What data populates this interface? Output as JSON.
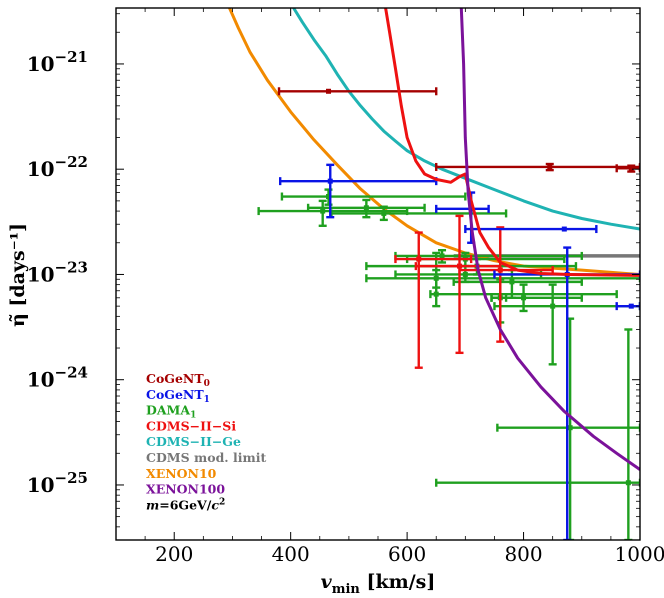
{
  "chart_data": {
    "type": "scatter",
    "xlabel": "v_min  [km/s]",
    "ylabel": "η̃ [days⁻¹]",
    "x_axis": {
      "min": 100,
      "max": 1000,
      "scale": "linear",
      "ticks": [
        200,
        400,
        600,
        800,
        1000
      ]
    },
    "y_axis": {
      "min": 3e-26,
      "max": 3.4e-21,
      "scale": "log",
      "ticks": [
        {
          "value": 1e-21,
          "exponent": "−21"
        },
        {
          "value": 1e-22,
          "exponent": "−22"
        },
        {
          "value": 1e-23,
          "exponent": "−23"
        },
        {
          "value": 1e-24,
          "exponent": "−24"
        },
        {
          "value": 1e-25,
          "exponent": "−25"
        }
      ]
    },
    "colors": {
      "CoGeNT0": "#a50000",
      "CoGeNT1": "#0a14e6",
      "DAMA1": "#1fa01f",
      "CDMS-II-Si": "#ee1111",
      "CDMS-II-Ge": "#1fb3b3",
      "CDMS-mod": "#777777",
      "XENON10": "#f28a00",
      "XENON100": "#7b129a",
      "mass": "#000000"
    },
    "legend": [
      {
        "key": "CoGeNT0",
        "label": "CoGeNT",
        "sub": "0"
      },
      {
        "key": "CoGeNT1",
        "label": "CoGeNT",
        "sub": "1"
      },
      {
        "key": "DAMA1",
        "label": "DAMA",
        "sub": "1"
      },
      {
        "key": "CDMS-II-Si",
        "label": "CDMS−II−Si",
        "sub": ""
      },
      {
        "key": "CDMS-II-Ge",
        "label": "CDMS−II−Ge",
        "sub": ""
      },
      {
        "key": "CDMS-mod",
        "label": "CDMS mod. limit",
        "sub": ""
      },
      {
        "key": "XENON10",
        "label": "XENON10",
        "sub": ""
      },
      {
        "key": "XENON100",
        "label": "XENON100",
        "sub": ""
      },
      {
        "key": "mass",
        "label": "m=6GeV/c",
        "sub": "",
        "sup": "2"
      }
    ],
    "series": [
      {
        "name": "XENON10",
        "type": "line",
        "color_key": "XENON10",
        "points": [
          [
            295,
            3.4e-21
          ],
          [
            310,
            2.2e-21
          ],
          [
            330,
            1.3e-21
          ],
          [
            360,
            7e-22
          ],
          [
            400,
            3.5e-22
          ],
          [
            440,
            1.9e-22
          ],
          [
            480,
            1.1e-22
          ],
          [
            520,
            6.5e-23
          ],
          [
            560,
            4.2e-23
          ],
          [
            600,
            2.9e-23
          ],
          [
            650,
            2e-23
          ],
          [
            700,
            1.6e-23
          ],
          [
            750,
            1.35e-23
          ],
          [
            800,
            1.2e-23
          ],
          [
            900,
            1.1e-23
          ],
          [
            1000,
            1e-23
          ]
        ]
      },
      {
        "name": "CDMS-II-Ge",
        "type": "line",
        "color_key": "CDMS-II-Ge",
        "points": [
          [
            405,
            3.4e-21
          ],
          [
            420,
            2.5e-21
          ],
          [
            440,
            1.7e-21
          ],
          [
            460,
            1.2e-21
          ],
          [
            480,
            8e-22
          ],
          [
            500,
            5.5e-22
          ],
          [
            520,
            4e-22
          ],
          [
            540,
            3e-22
          ],
          [
            560,
            2.3e-22
          ],
          [
            580,
            1.85e-22
          ],
          [
            600,
            1.5e-22
          ],
          [
            630,
            1.2e-22
          ],
          [
            660,
            1e-22
          ],
          [
            700,
            8.2e-23
          ],
          [
            750,
            6.4e-23
          ],
          [
            800,
            5e-23
          ],
          [
            850,
            4e-23
          ],
          [
            900,
            3.4e-23
          ],
          [
            950,
            3e-23
          ],
          [
            1000,
            2.7e-23
          ]
        ]
      },
      {
        "name": "CDMS-II-Si",
        "type": "line",
        "color_key": "CDMS-II-Si",
        "points": [
          [
            563,
            3.4e-21
          ],
          [
            570,
            2e-21
          ],
          [
            580,
            9e-22
          ],
          [
            590,
            4e-22
          ],
          [
            600,
            2e-22
          ],
          [
            615,
            1.2e-22
          ],
          [
            630,
            9e-23
          ],
          [
            650,
            8e-23
          ],
          [
            675,
            7.5e-23
          ],
          [
            690,
            8.5e-23
          ],
          [
            700,
            9e-23
          ],
          [
            710,
            5e-23
          ],
          [
            725,
            2.5e-23
          ],
          [
            740,
            1.8e-23
          ],
          [
            760,
            1.3e-23
          ],
          [
            790,
            1.1e-23
          ],
          [
            830,
            1.02e-23
          ],
          [
            880,
            1e-23
          ],
          [
            1000,
            9.8e-24
          ]
        ]
      },
      {
        "name": "XENON100",
        "type": "line",
        "color_key": "XENON100",
        "points": [
          [
            693,
            3.4e-21
          ],
          [
            697,
            1e-21
          ],
          [
            700,
            2e-22
          ],
          [
            705,
            6e-23
          ],
          [
            712,
            2.5e-23
          ],
          [
            722,
            1.1e-23
          ],
          [
            735,
            6e-24
          ],
          [
            760,
            3e-24
          ],
          [
            790,
            1.6e-24
          ],
          [
            830,
            8.5e-25
          ],
          [
            870,
            5e-25
          ],
          [
            920,
            2.9e-25
          ],
          [
            960,
            2e-25
          ],
          [
            1000,
            1.4e-25
          ]
        ]
      },
      {
        "name": "CDMS mod. limit",
        "type": "line",
        "color_key": "CDMS-mod",
        "points": [
          [
            680,
            1.5e-23
          ],
          [
            1000,
            1.5e-23
          ]
        ]
      },
      {
        "name": "CoGeNT0",
        "type": "errorbars",
        "color_key": "CoGeNT0",
        "points": [
          {
            "x": 465,
            "xerr": [
              380,
              650
            ],
            "y": 5.5e-22
          },
          {
            "x": 845,
            "xerr": [
              650,
              1000
            ],
            "y": 1.05e-22,
            "yerr": [
              9.8e-23,
              1.12e-22
            ]
          },
          {
            "x": 985,
            "xerr": [
              960,
              1000
            ],
            "y": 1.02e-22,
            "yerr": [
              9.5e-23,
              1.08e-22
            ]
          }
        ]
      },
      {
        "name": "CoGeNT1",
        "type": "errorbars",
        "color_key": "CoGeNT1",
        "points": [
          {
            "x": 468,
            "xerr": [
              382,
              650
            ],
            "y": 7.7e-23,
            "yerr": [
              3.5e-23,
              1.1e-22
            ]
          },
          {
            "x": 710,
            "xerr": [
              650,
              740
            ],
            "y": 4.2e-23,
            "yerr": [
              2e-23,
              6e-23
            ]
          },
          {
            "x": 870,
            "xerr": [
              700,
              925
            ],
            "y": 2.7e-23
          },
          {
            "x": 875,
            "xerr": [
              750,
              1000
            ],
            "y": 1e-23,
            "yerr": [
              3e-26,
              1.8e-23
            ]
          },
          {
            "x": 985,
            "xerr": [
              960,
              1000
            ],
            "y": 5e-24
          }
        ]
      },
      {
        "name": "CDMS-II-Si points",
        "type": "errorbars",
        "color_key": "CDMS-II-Si",
        "points": [
          {
            "x": 620,
            "xerr": [
              580,
              710
            ],
            "y": 1.4e-23,
            "yerr": [
              1.3e-24,
              2.5e-23
            ]
          },
          {
            "x": 690,
            "xerr": [
              615,
              760
            ],
            "y": 1.2e-23,
            "yerr": [
              1.8e-24,
              3.6e-23
            ]
          },
          {
            "x": 760,
            "xerr": [
              690,
              850
            ],
            "y": 1.1e-23,
            "yerr": [
              2.3e-24,
              2.8e-23
            ]
          }
        ]
      },
      {
        "name": "DAMA1",
        "type": "errorbars",
        "color_key": "DAMA1",
        "points": [
          {
            "x": 465,
            "xerr": [
              385,
              700
            ],
            "y": 5.5e-23,
            "yerr": [
              4.6e-23,
              6.4e-23
            ]
          },
          {
            "x": 455,
            "xerr": [
              345,
              600
            ],
            "y": 4e-23,
            "yerr": [
              2.9e-23,
              5e-23
            ]
          },
          {
            "x": 530,
            "xerr": [
              430,
              630
            ],
            "y": 4.3e-23,
            "yerr": [
              3.5e-23,
              5.1e-23
            ]
          },
          {
            "x": 560,
            "xerr": [
              470,
              770
            ],
            "y": 3.8e-23,
            "yerr": [
              3.3e-23,
              4.4e-23
            ]
          },
          {
            "x": 660,
            "xerr": [
              580,
              900
            ],
            "y": 1.5e-23,
            "yerr": [
              1.3e-23,
              1.7e-23
            ]
          },
          {
            "x": 700,
            "xerr": [
              600,
              870
            ],
            "y": 1.4e-23,
            "yerr": [
              1.2e-23,
              1.6e-23
            ]
          },
          {
            "x": 720,
            "xerr": [
              530,
              890
            ],
            "y": 1.2e-23,
            "yerr": [
              1e-23,
              1.4e-23
            ]
          },
          {
            "x": 700,
            "xerr": [
              580,
              830
            ],
            "y": 1e-23,
            "yerr": [
              8.5e-24,
              1.2e-23
            ]
          },
          {
            "x": 650,
            "xerr": [
              530,
              1000
            ],
            "y": 9.2e-24,
            "yerr": [
              7.5e-24,
              1.1e-23
            ]
          },
          {
            "x": 780,
            "xerr": [
              680,
              900
            ],
            "y": 8.5e-24,
            "yerr": [
              6e-24,
              1.1e-23
            ]
          },
          {
            "x": 650,
            "xerr": [
              640,
              960
            ],
            "y": 6.5e-24,
            "yerr": [
              5e-24,
              1.6e-23
            ]
          },
          {
            "x": 800,
            "xerr": [
              745,
              900
            ],
            "y": 6e-24,
            "yerr": [
              4.5e-24,
              8e-24
            ]
          },
          {
            "x": 850,
            "xerr": [
              750,
              1000
            ],
            "y": 5e-24,
            "yerr": [
              1.4e-24,
              8e-24
            ]
          },
          {
            "x": 760,
            "xerr": [
              745,
              770
            ],
            "y": 6e-24,
            "yerr": [
              3.5e-24,
              9e-24
            ]
          },
          {
            "x": 880,
            "xerr": [
              755,
              1000
            ],
            "y": 3.5e-25,
            "yerr": [
              3e-26,
              3.8e-24
            ]
          },
          {
            "x": 980,
            "xerr": [
              650,
              1000
            ],
            "y": 1.05e-25,
            "yerr": [
              3e-26,
              3e-24
            ]
          }
        ]
      }
    ]
  }
}
